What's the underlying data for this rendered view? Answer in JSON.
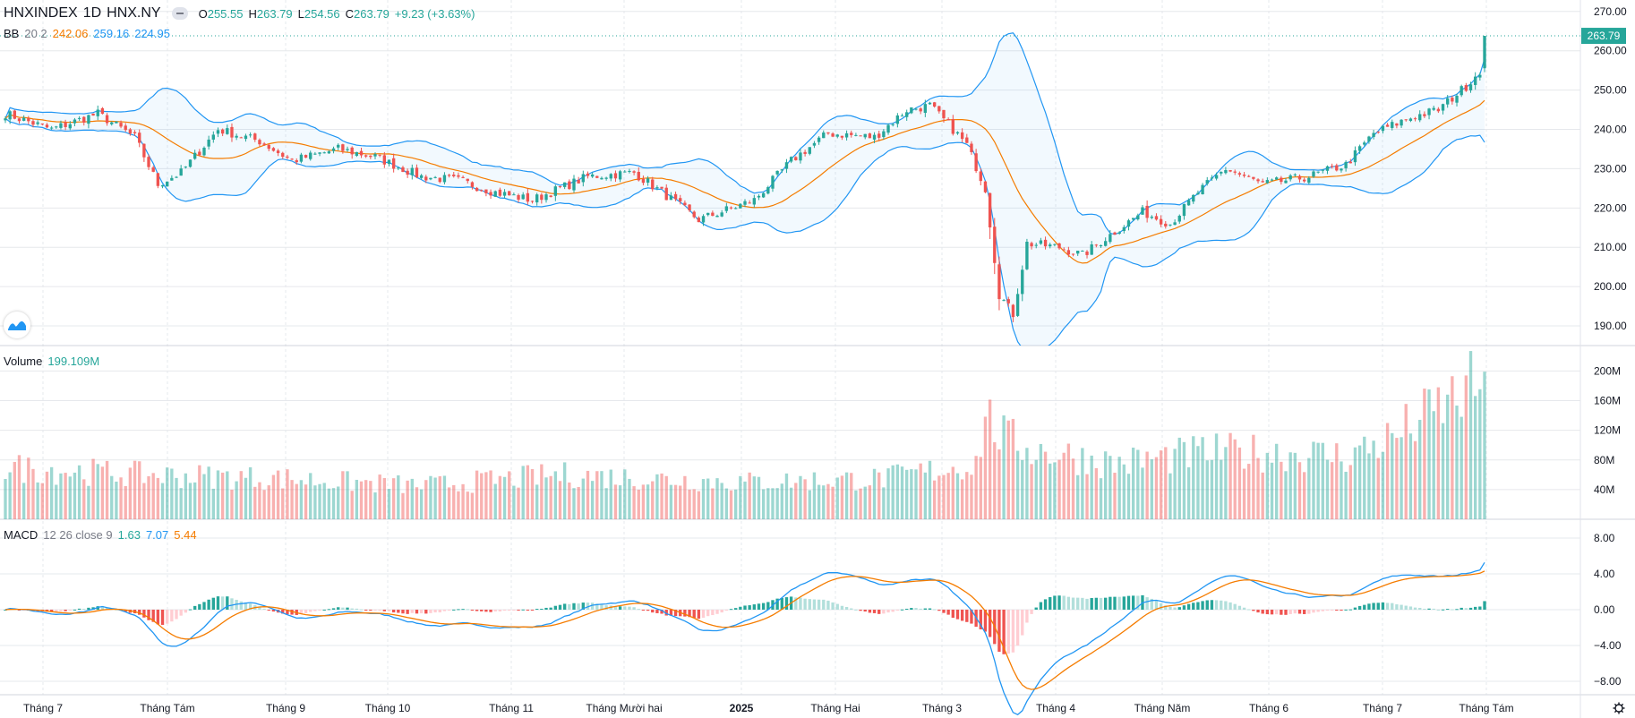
{
  "header": {
    "symbol": "HNXINDEX",
    "interval": "1D",
    "exchange": "HNX.NY",
    "open_label": "O",
    "open": "255.55",
    "high_label": "H",
    "high": "263.79",
    "low_label": "L",
    "low": "254.56",
    "close_label": "C",
    "close": "263.79",
    "change": "+9.23 (+3.63%)"
  },
  "bb_legend": {
    "label": "BB",
    "params": "20 2",
    "basis": "242.06",
    "upper": "259.16",
    "lower": "224.95"
  },
  "volume_legend": {
    "label": "Volume",
    "value": "199.109M"
  },
  "macd_legend": {
    "label": "MACD",
    "params": "12 26 close 9",
    "hist": "1.63",
    "macd": "7.07",
    "signal": "5.44"
  },
  "last_price_label": "263.79",
  "colors": {
    "up": "#26a69a",
    "down": "#ef5350",
    "macd": "#2196f3",
    "signal": "#f57c00",
    "bb_fill": "#2196f3",
    "grid": "#e6e8ec"
  },
  "chart_data": [
    {
      "type": "candlestick",
      "title": "HNXINDEX 1D HNX.NY",
      "overlay": "Bollinger Bands (20, 2)",
      "ylim": [
        185,
        272
      ],
      "y_ticks": [
        "190.00",
        "200.00",
        "210.00",
        "220.00",
        "230.00",
        "240.00",
        "250.00",
        "260.00",
        "270.00"
      ],
      "x_ticks": [
        "Tháng 7",
        "Tháng Tám",
        "Tháng 9",
        "Tháng 10",
        "Tháng 11",
        "Tháng Mười hai",
        "2025",
        "Tháng Hai",
        "Tháng 3",
        "Tháng 4",
        "Tháng Năm",
        "Tháng 6",
        "Tháng 7",
        "Tháng Tám"
      ],
      "close_keypoints": [
        [
          0,
          244
        ],
        [
          10,
          240
        ],
        [
          20,
          244
        ],
        [
          28,
          238
        ],
        [
          33,
          226
        ],
        [
          38,
          229
        ],
        [
          46,
          240
        ],
        [
          55,
          237
        ],
        [
          62,
          232
        ],
        [
          72,
          235
        ],
        [
          80,
          233
        ],
        [
          90,
          228
        ],
        [
          98,
          227
        ],
        [
          106,
          224
        ],
        [
          114,
          222
        ],
        [
          120,
          225
        ],
        [
          126,
          228
        ],
        [
          136,
          229
        ],
        [
          142,
          224
        ],
        [
          150,
          217
        ],
        [
          162,
          222
        ],
        [
          170,
          232
        ],
        [
          178,
          239
        ],
        [
          188,
          238
        ],
        [
          195,
          245
        ],
        [
          200,
          246
        ],
        [
          205,
          240
        ],
        [
          208,
          236
        ],
        [
          212,
          225
        ],
        [
          215,
          198
        ],
        [
          218,
          193
        ],
        [
          221,
          211
        ],
        [
          228,
          210
        ],
        [
          233,
          208
        ],
        [
          240,
          214
        ],
        [
          246,
          219
        ],
        [
          252,
          216
        ],
        [
          258,
          224
        ],
        [
          264,
          230
        ],
        [
          272,
          226
        ],
        [
          282,
          228
        ],
        [
          290,
          231
        ],
        [
          296,
          239
        ],
        [
          304,
          243
        ],
        [
          310,
          245
        ],
        [
          316,
          251
        ],
        [
          319,
          255
        ],
        [
          320,
          263.79
        ]
      ]
    },
    {
      "type": "bar",
      "title": "Volume",
      "ylim": [
        0,
        215
      ],
      "y_ticks": [
        "40M",
        "80M",
        "120M",
        "160M",
        "200M"
      ],
      "volume_keypoints": [
        [
          0,
          70
        ],
        [
          30,
          60
        ],
        [
          60,
          55
        ],
        [
          90,
          45
        ],
        [
          120,
          60
        ],
        [
          160,
          50
        ],
        [
          190,
          55
        ],
        [
          210,
          75
        ],
        [
          212,
          140
        ],
        [
          216,
          110
        ],
        [
          222,
          95
        ],
        [
          240,
          75
        ],
        [
          260,
          90
        ],
        [
          275,
          90
        ],
        [
          290,
          85
        ],
        [
          300,
          110
        ],
        [
          310,
          150
        ],
        [
          318,
          180
        ],
        [
          320,
          199.109
        ]
      ]
    },
    {
      "type": "line",
      "title": "MACD 12 26 close 9",
      "ylim": [
        -9.5,
        9.5
      ],
      "y_ticks": [
        "−8.00",
        "−4.00",
        "0.00",
        "4.00",
        "8.00"
      ],
      "series_names": [
        "Histogram",
        "MACD",
        "Signal"
      ]
    }
  ]
}
